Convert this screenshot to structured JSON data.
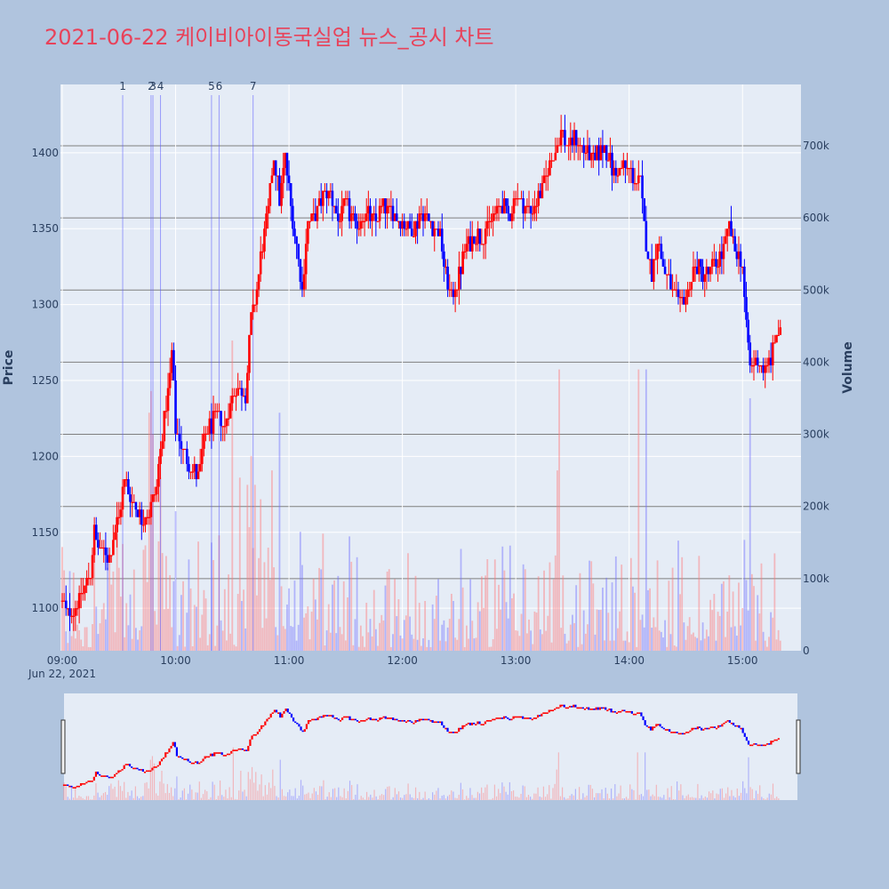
{
  "title": "2021-06-22 케이비아이동국실업 뉴스_공시 차트",
  "colors": {
    "page_bg": "#b0c4de",
    "plot_bg": "#e5ecf6",
    "title": "#e8425a",
    "up": "#ff0000",
    "down": "#0000ff",
    "up_volume": "rgba(255,120,120,0.45)",
    "down_volume": "rgba(110,110,255,0.45)",
    "news_line": "rgba(90,90,255,0.55)",
    "volume_grid": "#7f7f7f",
    "axis_text": "#2a3f5f"
  },
  "chart_data": {
    "type": "candlestick",
    "title": "2021-06-22 케이비아이동국실업 뉴스_공시 차트",
    "ylabel": "Price",
    "y2label": "Volume",
    "x_start": "09:00",
    "x_end": "15:30",
    "ylim": [
      1072,
      1445
    ],
    "y2lim": [
      0,
      785000
    ],
    "y_ticks": [
      1100,
      1150,
      1200,
      1250,
      1300,
      1350,
      1400
    ],
    "y2_ticks": [
      0,
      100000,
      200000,
      300000,
      400000,
      500000,
      600000,
      700000
    ],
    "y2_tick_labels": [
      "0",
      "100k",
      "200k",
      "300k",
      "400k",
      "500k",
      "600k",
      "700k"
    ],
    "x_ticks": [
      "09:00",
      "10:00",
      "11:00",
      "12:00",
      "13:00",
      "14:00",
      "15:00"
    ],
    "x_date_label": "Jun 22, 2021",
    "price_path": [
      [
        "09:00",
        1105
      ],
      [
        "09:03",
        1095
      ],
      [
        "09:06",
        1100
      ],
      [
        "09:09",
        1105
      ],
      [
        "09:12",
        1115
      ],
      [
        "09:15",
        1125
      ],
      [
        "09:17",
        1150
      ],
      [
        "09:20",
        1138
      ],
      [
        "09:25",
        1135
      ],
      [
        "09:30",
        1160
      ],
      [
        "09:33",
        1185
      ],
      [
        "09:37",
        1170
      ],
      [
        "09:42",
        1160
      ],
      [
        "09:46",
        1165
      ],
      [
        "09:50",
        1180
      ],
      [
        "09:53",
        1215
      ],
      [
        "09:56",
        1240
      ],
      [
        "09:58",
        1270
      ],
      [
        "10:00",
        1220
      ],
      [
        "10:04",
        1205
      ],
      [
        "10:08",
        1195
      ],
      [
        "10:12",
        1185
      ],
      [
        "10:15",
        1210
      ],
      [
        "10:18",
        1220
      ],
      [
        "10:22",
        1225
      ],
      [
        "10:26",
        1220
      ],
      [
        "10:30",
        1240
      ],
      [
        "10:34",
        1245
      ],
      [
        "10:37",
        1240
      ],
      [
        "10:40",
        1290
      ],
      [
        "10:43",
        1310
      ],
      [
        "10:46",
        1340
      ],
      [
        "10:49",
        1360
      ],
      [
        "10:52",
        1400
      ],
      [
        "10:55",
        1370
      ],
      [
        "10:58",
        1395
      ],
      [
        "11:01",
        1365
      ],
      [
        "11:04",
        1340
      ],
      [
        "11:07",
        1310
      ],
      [
        "11:10",
        1355
      ],
      [
        "11:14",
        1360
      ],
      [
        "11:18",
        1370
      ],
      [
        "11:22",
        1375
      ],
      [
        "11:26",
        1355
      ],
      [
        "11:30",
        1365
      ],
      [
        "11:35",
        1350
      ],
      [
        "11:40",
        1360
      ],
      [
        "11:45",
        1355
      ],
      [
        "11:50",
        1365
      ],
      [
        "11:55",
        1360
      ],
      [
        "12:00",
        1355
      ],
      [
        "12:05",
        1350
      ],
      [
        "12:10",
        1360
      ],
      [
        "12:15",
        1355
      ],
      [
        "12:20",
        1345
      ],
      [
        "12:23",
        1320
      ],
      [
        "12:26",
        1305
      ],
      [
        "12:30",
        1320
      ],
      [
        "12:33",
        1335
      ],
      [
        "12:37",
        1345
      ],
      [
        "12:42",
        1345
      ],
      [
        "12:47",
        1355
      ],
      [
        "12:52",
        1365
      ],
      [
        "12:57",
        1358
      ],
      [
        "13:00",
        1375
      ],
      [
        "13:04",
        1365
      ],
      [
        "13:08",
        1360
      ],
      [
        "13:12",
        1370
      ],
      [
        "13:16",
        1385
      ],
      [
        "13:20",
        1400
      ],
      [
        "13:24",
        1415
      ],
      [
        "13:28",
        1405
      ],
      [
        "13:32",
        1410
      ],
      [
        "13:37",
        1400
      ],
      [
        "13:42",
        1395
      ],
      [
        "13:47",
        1405
      ],
      [
        "13:52",
        1385
      ],
      [
        "13:57",
        1390
      ],
      [
        "14:02",
        1385
      ],
      [
        "14:06",
        1380
      ],
      [
        "14:09",
        1340
      ],
      [
        "14:12",
        1320
      ],
      [
        "14:15",
        1345
      ],
      [
        "14:18",
        1325
      ],
      [
        "14:22",
        1310
      ],
      [
        "14:26",
        1300
      ],
      [
        "14:30",
        1305
      ],
      [
        "14:35",
        1325
      ],
      [
        "14:40",
        1320
      ],
      [
        "14:45",
        1325
      ],
      [
        "14:50",
        1335
      ],
      [
        "14:53",
        1350
      ],
      [
        "14:56",
        1335
      ],
      [
        "15:00",
        1325
      ],
      [
        "15:02",
        1285
      ],
      [
        "15:04",
        1260
      ],
      [
        "15:08",
        1265
      ],
      [
        "15:12",
        1255
      ],
      [
        "15:15",
        1265
      ],
      [
        "15:18",
        1280
      ],
      [
        "15:20",
        1280
      ]
    ],
    "news_markers": [
      {
        "label": "1",
        "time": "09:32"
      },
      {
        "label": "2",
        "time": "09:47"
      },
      {
        "label": "3",
        "time": "09:48"
      },
      {
        "label": "4",
        "time": "09:52"
      },
      {
        "label": "5",
        "time": "10:19"
      },
      {
        "label": "6",
        "time": "10:23"
      },
      {
        "label": "7",
        "time": "10:41"
      }
    ]
  }
}
